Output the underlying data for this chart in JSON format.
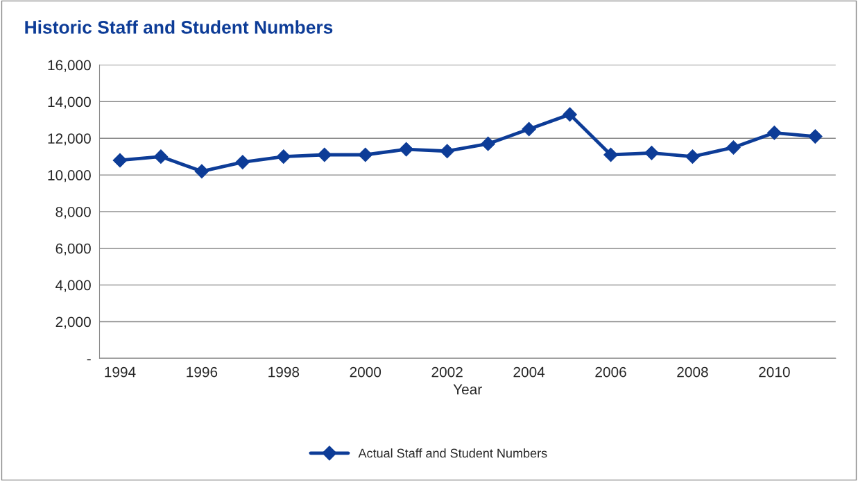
{
  "chart_data": {
    "type": "line",
    "title": "Historic Staff and Student Numbers",
    "xlabel": "Year",
    "categories": [
      "1994",
      null,
      "1996",
      null,
      "1998",
      null,
      "2000",
      null,
      "2002",
      null,
      "2004",
      null,
      "2006",
      null,
      "2008",
      null,
      "2010",
      null
    ],
    "series": [
      {
        "name": "Actual Staff and Student Numbers",
        "color": "#0d3c97",
        "values": [
          10800,
          11000,
          10200,
          10700,
          11000,
          11100,
          11100,
          11400,
          11300,
          11700,
          12500,
          13300,
          11100,
          11200,
          11000,
          11500,
          12300,
          12100
        ]
      }
    ],
    "ylim": [
      0,
      16000
    ],
    "yticks": [
      {
        "value": 0,
        "label": "-"
      },
      {
        "value": 2000,
        "label": "2,000"
      },
      {
        "value": 4000,
        "label": "4,000"
      },
      {
        "value": 6000,
        "label": "6,000"
      },
      {
        "value": 8000,
        "label": "8,000"
      },
      {
        "value": 10000,
        "label": "10,000"
      },
      {
        "value": 12000,
        "label": "12,000"
      },
      {
        "value": 14000,
        "label": "14,000"
      },
      {
        "value": 16000,
        "label": "16,000"
      }
    ],
    "grid": "y",
    "legend": "bottom",
    "marker": "diamond",
    "line_style": "solid"
  }
}
